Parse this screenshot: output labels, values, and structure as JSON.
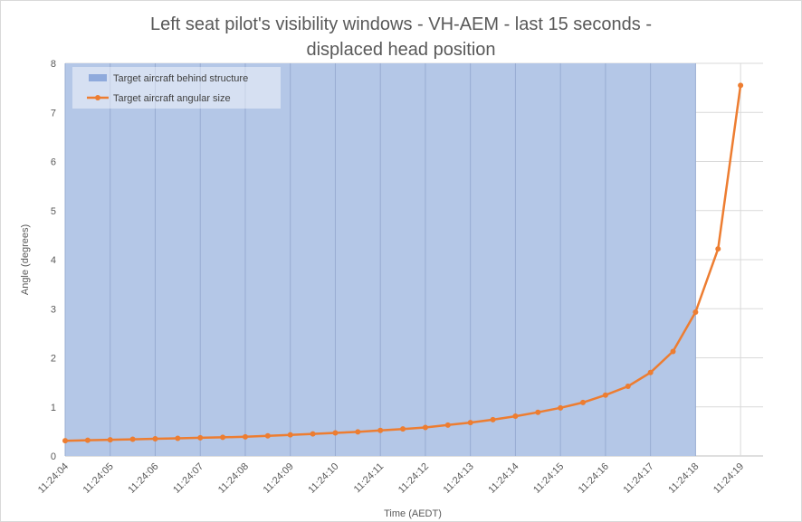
{
  "chart_data": {
    "type": "line",
    "title_lines": [
      "Left seat pilot's visibility windows - VH-AEM - last 15 seconds -",
      "displaced head position"
    ],
    "xlabel": "Time (AEDT)",
    "ylabel": "Angle (degrees)",
    "ylim": [
      0,
      8
    ],
    "yticks": [
      "0",
      "1",
      "2",
      "3",
      "4",
      "5",
      "6",
      "7",
      "8"
    ],
    "xlim_seconds": [
      4,
      19.5
    ],
    "xticks": [
      {
        "label": "11:24:04",
        "sec": 4
      },
      {
        "label": "11:24:05",
        "sec": 5
      },
      {
        "label": "11:24:06",
        "sec": 6
      },
      {
        "label": "11:24:07",
        "sec": 7
      },
      {
        "label": "11:24:08",
        "sec": 8
      },
      {
        "label": "11:24:09",
        "sec": 9
      },
      {
        "label": "11:24:10",
        "sec": 10
      },
      {
        "label": "11:24:11",
        "sec": 11
      },
      {
        "label": "11:24:12",
        "sec": 12
      },
      {
        "label": "11:24:13",
        "sec": 13
      },
      {
        "label": "11:24:14",
        "sec": 14
      },
      {
        "label": "11:24:15",
        "sec": 15
      },
      {
        "label": "11:24:16",
        "sec": 16
      },
      {
        "label": "11:24:17",
        "sec": 17
      },
      {
        "label": "11:24:18",
        "sec": 18
      },
      {
        "label": "11:24:19",
        "sec": 19
      }
    ],
    "grid": true,
    "legend_position": "top-left",
    "series": [
      {
        "name": "Target aircraft behind structure",
        "kind": "shaded-region",
        "x_start": 4,
        "x_end": 18,
        "y_top": 8,
        "color": "#b4c7e7"
      },
      {
        "name": "Target aircraft angular size",
        "kind": "line-markers",
        "color": "#ed7d31",
        "x": [
          4,
          4.5,
          5,
          5.5,
          6,
          6.5,
          7,
          7.5,
          8,
          8.5,
          9,
          9.5,
          10,
          10.5,
          11,
          11.5,
          12,
          12.5,
          13,
          13.5,
          14,
          14.5,
          15,
          15.5,
          16,
          16.5,
          17,
          17.5,
          18,
          18.5,
          19
        ],
        "values": [
          0.31,
          0.32,
          0.33,
          0.34,
          0.35,
          0.36,
          0.37,
          0.38,
          0.39,
          0.41,
          0.43,
          0.45,
          0.47,
          0.49,
          0.52,
          0.55,
          0.58,
          0.63,
          0.68,
          0.74,
          0.81,
          0.89,
          0.98,
          1.09,
          1.24,
          1.42,
          1.7,
          2.13,
          2.93,
          4.22,
          7.55
        ]
      }
    ]
  }
}
